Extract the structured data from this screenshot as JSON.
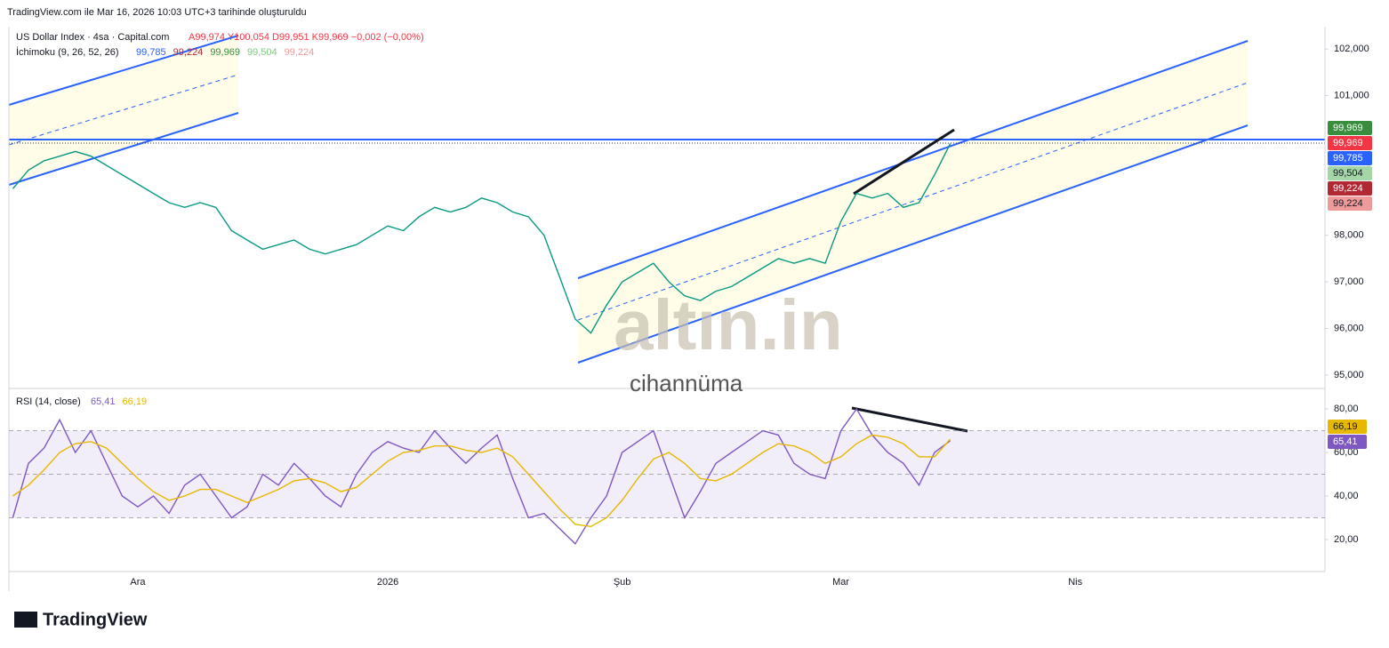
{
  "header": {
    "caption": "TradingView.com ile Mar 16, 2026 10:03 UTC+3 tarihinde oluşturuldu",
    "symbol": "US Dollar Index · 4sa · Capital.com",
    "ohlc": "A99,974 Y100,054 D99,951 K99,969 −0,002 (−0,00%)",
    "ichimoku": "İchimoku (9, 26, 52, 26)",
    "ichimoku_values": [
      {
        "label": "99,785",
        "color": "#2962ff"
      },
      {
        "label": "99,224",
        "color": "#b22833"
      },
      {
        "label": "99,969",
        "color": "#388e3c"
      },
      {
        "label": "99,504",
        "color": "#81c784"
      },
      {
        "label": "99,224",
        "color": "#ef9a9a"
      }
    ],
    "watermark": "altın.in",
    "watermark_sub": "cihannüma",
    "brand": "TradingView"
  },
  "chart_data": [
    {
      "type": "line",
      "categories": [
        null,
        null,
        null,
        null,
        null,
        null,
        null,
        null,
        "Ara",
        null,
        null,
        null,
        null,
        null,
        null,
        null,
        null,
        null,
        null,
        null,
        null,
        null,
        null,
        null,
        "2026",
        null,
        null,
        null,
        null,
        null,
        null,
        null,
        null,
        null,
        null,
        null,
        null,
        null,
        null,
        "Şub",
        null,
        null,
        null,
        null,
        null,
        null,
        null,
        null,
        null,
        null,
        null,
        null,
        null,
        "Mar",
        null,
        null,
        null,
        null,
        null,
        null,
        null,
        null,
        null,
        null,
        null,
        null,
        null,
        null,
        "Nis",
        null,
        null,
        null,
        null,
        null,
        null,
        null,
        null,
        null,
        null,
        null,
        null,
        null,
        null,
        null
      ],
      "series": [
        {
          "name": "US Dollar Index",
          "color": "#089981",
          "values": [
            99.0,
            99.4,
            99.6,
            99.7,
            99.8,
            99.7,
            99.5,
            99.3,
            99.1,
            98.9,
            98.7,
            98.6,
            98.7,
            98.6,
            98.1,
            97.9,
            97.7,
            97.8,
            97.9,
            97.7,
            97.6,
            97.7,
            97.8,
            98.0,
            98.2,
            98.1,
            98.4,
            98.6,
            98.5,
            98.6,
            98.8,
            98.7,
            98.5,
            98.4,
            98.0,
            97.1,
            96.2,
            95.9,
            96.5,
            97.0,
            97.2,
            97.4,
            97.0,
            96.7,
            96.6,
            96.8,
            96.9,
            97.1,
            97.3,
            97.5,
            97.4,
            97.5,
            97.4,
            98.3,
            98.9,
            98.8,
            98.9,
            98.6,
            98.7,
            99.3,
            99.969,
            null,
            null,
            null,
            null,
            null,
            null,
            null,
            null,
            null,
            null,
            null,
            null,
            null,
            null,
            null,
            null,
            null,
            null,
            null,
            null,
            null,
            null,
            null
          ]
        }
      ],
      "ylim": [
        94.75,
        102.48
      ],
      "yticks": [
        {
          "value": 95,
          "label": "95,000"
        },
        {
          "value": 96,
          "label": "96,000"
        },
        {
          "value": 97,
          "label": "97,000"
        },
        {
          "value": 98,
          "label": "98,000"
        },
        {
          "value": 101,
          "label": "101,000"
        },
        {
          "value": 102,
          "label": "102,000"
        }
      ],
      "price_badges": [
        {
          "value": 99.969,
          "label": "99,969",
          "color": "#388e3c"
        },
        {
          "value": 99.969,
          "label": "99,969",
          "color": "#f23645"
        },
        {
          "value": 99.785,
          "label": "99,785",
          "color": "#2962ff"
        },
        {
          "value": 99.504,
          "label": "99,504",
          "color": "#a5d6a7"
        },
        {
          "value": 99.224,
          "label": "99,224",
          "color": "#b22833"
        },
        {
          "value": 99.224,
          "label": "99,224",
          "color": "#ef9a9a"
        }
      ]
    },
    {
      "type": "line",
      "title": "RSI (14, close)",
      "series": [
        {
          "name": "RSI",
          "color": "#7e57c2",
          "value_label": "65,41",
          "values": [
            30,
            55,
            62,
            75,
            60,
            70,
            55,
            40,
            35,
            40,
            32,
            45,
            50,
            40,
            30,
            35,
            50,
            45,
            55,
            48,
            40,
            35,
            50,
            60,
            65,
            62,
            60,
            70,
            62,
            55,
            62,
            68,
            48,
            30,
            32,
            25,
            18,
            30,
            40,
            60,
            65,
            70,
            50,
            30,
            42,
            55,
            60,
            65,
            70,
            68,
            55,
            50,
            48,
            70,
            80,
            68,
            60,
            55,
            45,
            60,
            65.41,
            null,
            null,
            null,
            null,
            null,
            null,
            null,
            null,
            null,
            null,
            null,
            null,
            null,
            null,
            null,
            null,
            null,
            null,
            null,
            null,
            null,
            null,
            null
          ]
        },
        {
          "name": "RSI MA",
          "color": "#e6b800",
          "value_label": "66,19",
          "values": [
            40,
            45,
            52,
            60,
            64,
            65,
            62,
            55,
            48,
            42,
            38,
            40,
            43,
            43,
            40,
            37,
            40,
            43,
            47,
            48,
            46,
            42,
            44,
            50,
            56,
            60,
            61,
            63,
            63,
            61,
            60,
            62,
            58,
            50,
            42,
            34,
            27,
            26,
            30,
            38,
            48,
            57,
            60,
            55,
            48,
            47,
            50,
            55,
            60,
            64,
            63,
            60,
            55,
            58,
            64,
            68,
            67,
            64,
            58,
            58,
            66.19,
            null,
            null,
            null,
            null,
            null,
            null,
            null,
            null,
            null,
            null,
            null,
            null,
            null,
            null,
            null,
            null,
            null,
            null,
            null,
            null,
            null,
            null,
            null
          ]
        }
      ],
      "ylim": [
        6.5,
        88.2
      ],
      "yticks": [
        {
          "value": 20,
          "label": "20,00"
        },
        {
          "value": 40,
          "label": "40,00"
        },
        {
          "value": 60,
          "label": "60,00"
        },
        {
          "value": 80,
          "label": "80,00"
        }
      ],
      "levels": [
        30,
        50,
        70
      ]
    }
  ]
}
